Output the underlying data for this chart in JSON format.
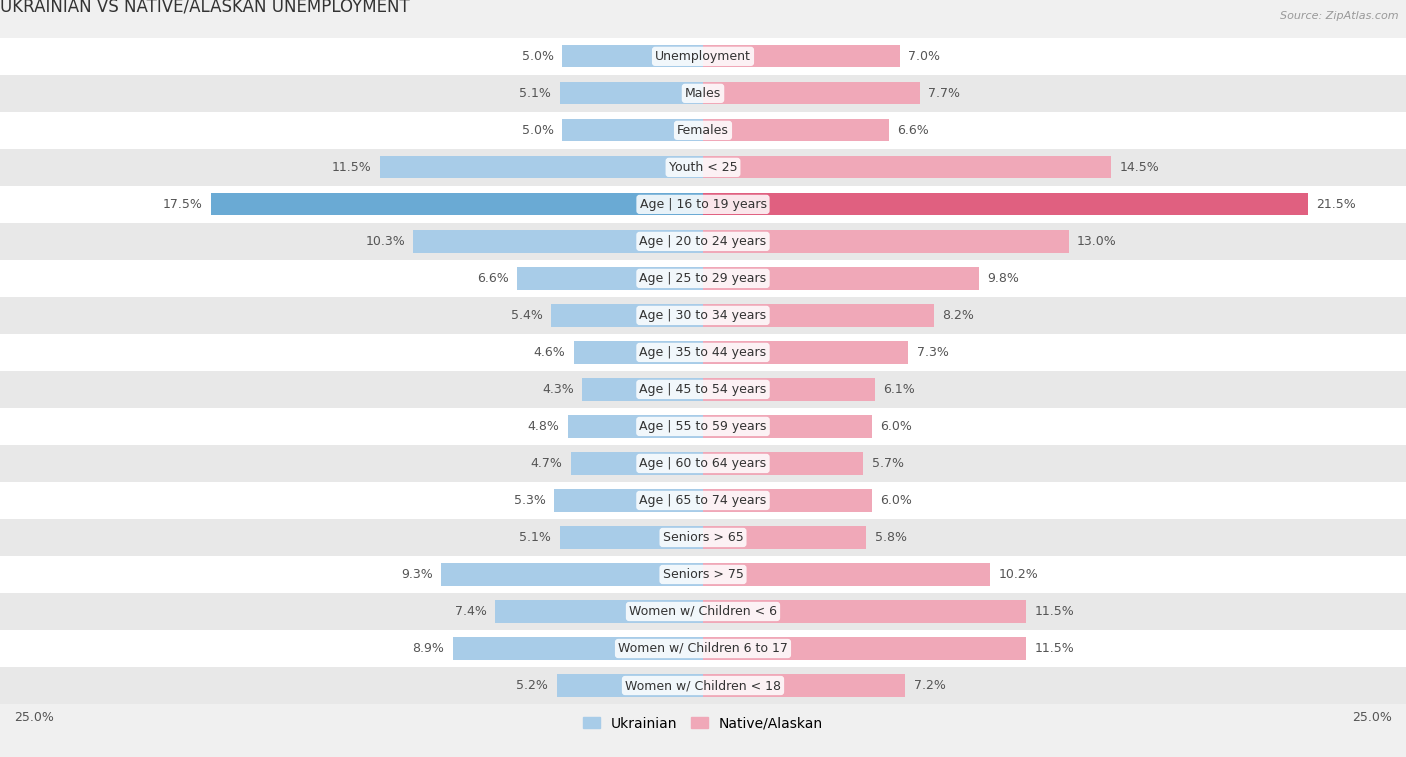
{
  "title": "UKRAINIAN VS NATIVE/ALASKAN UNEMPLOYMENT",
  "source": "Source: ZipAtlas.com",
  "categories": [
    "Unemployment",
    "Males",
    "Females",
    "Youth < 25",
    "Age | 16 to 19 years",
    "Age | 20 to 24 years",
    "Age | 25 to 29 years",
    "Age | 30 to 34 years",
    "Age | 35 to 44 years",
    "Age | 45 to 54 years",
    "Age | 55 to 59 years",
    "Age | 60 to 64 years",
    "Age | 65 to 74 years",
    "Seniors > 65",
    "Seniors > 75",
    "Women w/ Children < 6",
    "Women w/ Children 6 to 17",
    "Women w/ Children < 18"
  ],
  "ukrainian": [
    5.0,
    5.1,
    5.0,
    11.5,
    17.5,
    10.3,
    6.6,
    5.4,
    4.6,
    4.3,
    4.8,
    4.7,
    5.3,
    5.1,
    9.3,
    7.4,
    8.9,
    5.2
  ],
  "native_alaskan": [
    7.0,
    7.7,
    6.6,
    14.5,
    21.5,
    13.0,
    9.8,
    8.2,
    7.3,
    6.1,
    6.0,
    5.7,
    6.0,
    5.8,
    10.2,
    11.5,
    11.5,
    7.2
  ],
  "ukrainian_color": "#a8cce8",
  "native_alaskan_color": "#f0a8b8",
  "highlight_ukrainian_color": "#6aaad4",
  "highlight_native_color": "#e06080",
  "axis_max": 25.0,
  "bar_height": 0.6,
  "bg_color": "#f0f0f0",
  "row_light_color": "#ffffff",
  "row_dark_color": "#e8e8e8",
  "label_fontsize": 9.0,
  "title_fontsize": 12,
  "legend_fontsize": 10,
  "value_color": "#555555"
}
